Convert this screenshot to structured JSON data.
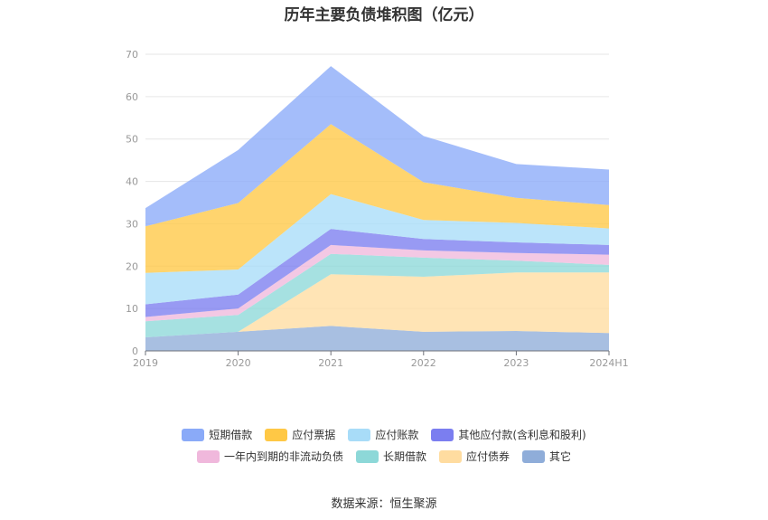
{
  "chart_data": {
    "type": "area",
    "stacked": true,
    "title": "历年主要负债堆积图（亿元）",
    "source_text": "数据来源：恒生聚源",
    "categories": [
      "2019",
      "2020",
      "2021",
      "2022",
      "2023",
      "2024H1"
    ],
    "ylim": [
      0,
      70
    ],
    "yticks": [
      0,
      10,
      20,
      30,
      40,
      50,
      60,
      70
    ],
    "grid": true,
    "legend_position": "bottom",
    "series": [
      {
        "name": "其它",
        "color": "#8fadd9",
        "values": [
          3.2,
          4.5,
          5.9,
          4.5,
          4.7,
          4.2
        ]
      },
      {
        "name": "应付债券",
        "color": "#ffdca0",
        "values": [
          0,
          0,
          12.2,
          13.0,
          13.8,
          14.3
        ]
      },
      {
        "name": "长期借款",
        "color": "#8dd8d8",
        "values": [
          3.8,
          4.0,
          4.8,
          4.5,
          2.8,
          1.8
        ]
      },
      {
        "name": "一年内到期的非流动负债",
        "color": "#f0b8dc",
        "values": [
          1.0,
          1.5,
          2.1,
          1.7,
          1.8,
          2.4
        ]
      },
      {
        "name": "其他应付款(含利息和股利)",
        "color": "#7b7ef0",
        "values": [
          3.0,
          3.3,
          3.8,
          2.7,
          2.5,
          2.3
        ]
      },
      {
        "name": "应付账款",
        "color": "#a8dcf8",
        "values": [
          7.4,
          5.9,
          8.2,
          4.5,
          4.6,
          3.9
        ]
      },
      {
        "name": "应付票据",
        "color": "#ffc845",
        "values": [
          11.0,
          15.7,
          16.5,
          8.9,
          5.9,
          5.5
        ]
      },
      {
        "name": "短期借款",
        "color": "#8aaaf8",
        "values": [
          4.3,
          12.5,
          13.7,
          10.9,
          8.0,
          8.4
        ]
      }
    ],
    "legend_rows": [
      [
        "短期借款",
        "应付票据",
        "应付账款",
        "其他应付款(含利息和股利)"
      ],
      [
        "一年内到期的非流动负债",
        "长期借款",
        "应付债券",
        "其它"
      ]
    ]
  }
}
